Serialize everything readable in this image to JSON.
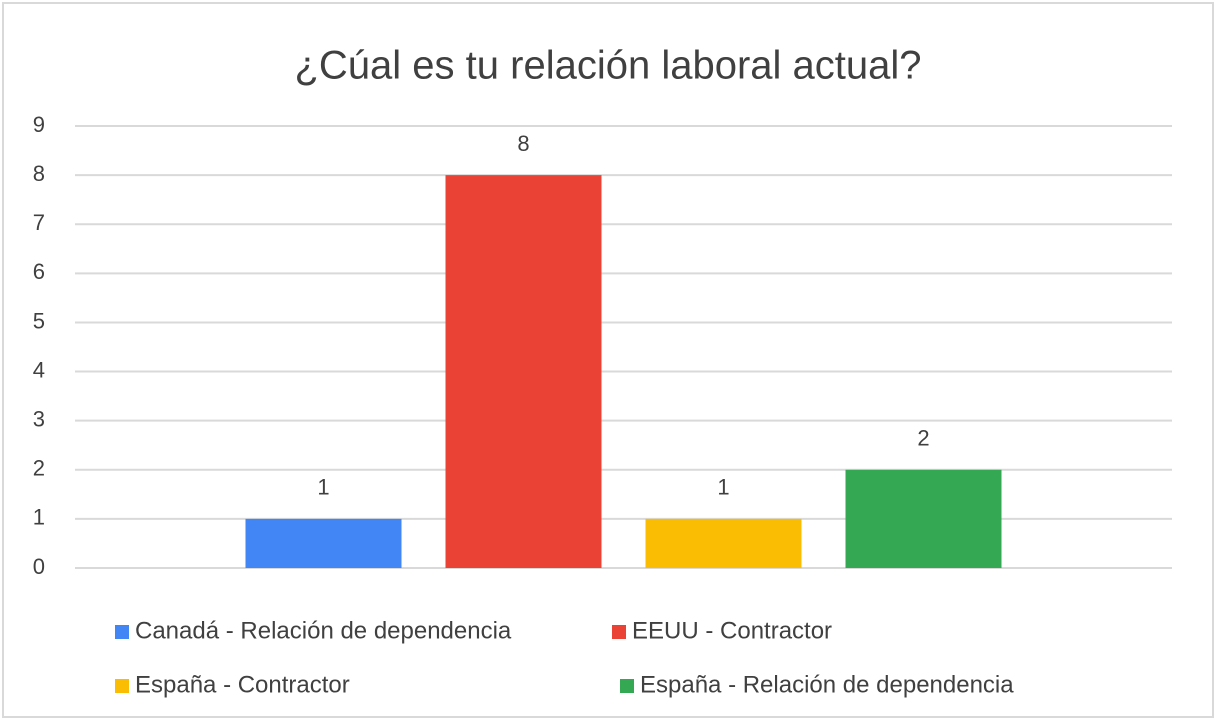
{
  "chart_data": {
    "type": "bar",
    "title": "¿Cúal es tu relación laboral actual?",
    "categories": [
      null
    ],
    "series": [
      {
        "name": "Canadá - Relación de dependencia",
        "color": "#4285f4",
        "values": [
          1
        ]
      },
      {
        "name": "EEUU - Contractor",
        "color": "#ea4335",
        "values": [
          8
        ]
      },
      {
        "name": "España - Contractor",
        "color": "#fbbc04",
        "values": [
          1
        ]
      },
      {
        "name": "España - Relación de dependencia",
        "color": "#34a853",
        "values": [
          2
        ]
      }
    ],
    "ylim": [
      0,
      9
    ],
    "yticks": [
      0,
      1,
      2,
      3,
      4,
      5,
      6,
      7,
      8,
      9
    ],
    "grid": true,
    "legend": "bottom"
  }
}
